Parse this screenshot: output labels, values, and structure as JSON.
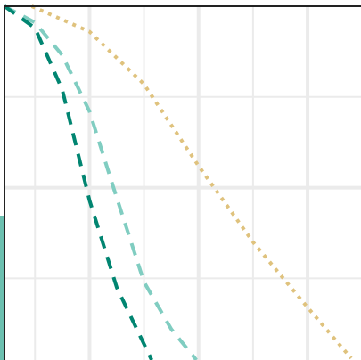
{
  "chart_data": {
    "type": "line",
    "xlim": [
      0.22,
      3.49
    ],
    "ylim": [
      -0.95,
      1.0
    ],
    "xticks": [
      0.5,
      1,
      1.5,
      2,
      2.5,
      3
    ],
    "yticks": [
      -0.5,
      0,
      0.5
    ],
    "grid": true,
    "series": [
      {
        "color": "#dfc27d",
        "dash": "dotted",
        "x": [
          0.47,
          1.0,
          1.5,
          2.0,
          2.5,
          3.0,
          3.4
        ],
        "values": [
          1.0,
          0.86,
          0.57,
          0.12,
          -0.3,
          -0.66,
          -0.94
        ]
      },
      {
        "color": "#80cdc1",
        "dash": "dashed",
        "x": [
          0.22,
          0.5,
          0.75,
          1.0,
          1.22,
          1.5,
          1.75,
          1.98
        ],
        "values": [
          1.0,
          0.91,
          0.73,
          0.42,
          0.0,
          -0.52,
          -0.78,
          -0.95
        ]
      },
      {
        "color": "#018571",
        "dash": "dashed",
        "x": [
          0.22,
          0.5,
          0.75,
          1.0,
          1.25,
          1.57
        ],
        "values": [
          1.0,
          0.88,
          0.54,
          -0.07,
          -0.55,
          -0.95
        ]
      }
    ]
  }
}
